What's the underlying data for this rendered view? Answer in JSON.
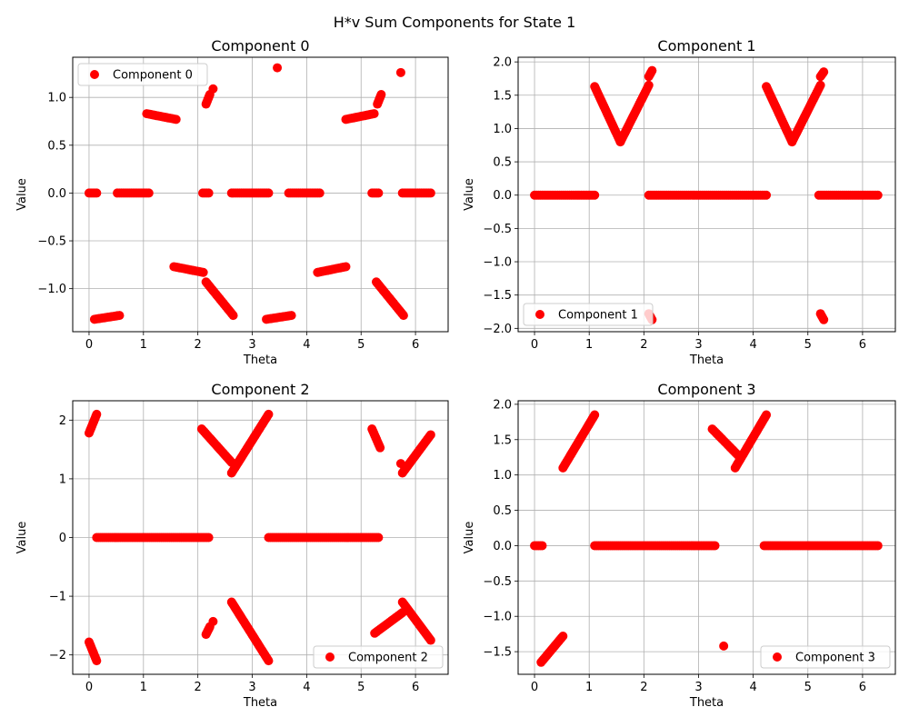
{
  "figure": {
    "suptitle": "H*v Sum Components for State 1",
    "marker_color": "#ff0000"
  },
  "chart_data": [
    {
      "type": "scatter",
      "title": "Component 0",
      "xlabel": "Theta",
      "ylabel": "Value",
      "xlim": [
        -0.3,
        6.6
      ],
      "ylim": [
        -1.45,
        1.42
      ],
      "xticks": [
        0,
        1,
        2,
        3,
        4,
        5,
        6
      ],
      "xtick_labels": [
        "0",
        "1",
        "2",
        "3",
        "4",
        "5",
        "6"
      ],
      "yticks": [
        -1.0,
        -0.5,
        0.0,
        0.5,
        1.0
      ],
      "ytick_labels": [
        "−1.0",
        "−0.5",
        "0.0",
        "0.5",
        "1.0"
      ],
      "grid": true,
      "legend": "upper-left",
      "series": [
        {
          "name": "Component 0",
          "color": "#ff0000",
          "segments": [
            {
              "x": [
                0.0,
                0.14
              ],
              "y": [
                0.0,
                0.0
              ]
            },
            {
              "x": [
                0.52,
                1.1
              ],
              "y": [
                0.0,
                0.0
              ]
            },
            {
              "x": [
                2.09,
                2.2
              ],
              "y": [
                0.0,
                0.0
              ]
            },
            {
              "x": [
                2.62,
                3.3
              ],
              "y": [
                0.0,
                0.0
              ]
            },
            {
              "x": [
                3.67,
                4.24
              ],
              "y": [
                0.0,
                0.0
              ]
            },
            {
              "x": [
                5.2,
                5.32
              ],
              "y": [
                0.0,
                0.0
              ]
            },
            {
              "x": [
                5.76,
                6.28
              ],
              "y": [
                0.0,
                0.0
              ]
            },
            {
              "x": [
                1.06,
                1.6
              ],
              "y": [
                0.83,
                0.77
              ]
            },
            {
              "x": [
                4.72,
                5.24
              ],
              "y": [
                0.77,
                0.83
              ]
            },
            {
              "x": [
                2.15,
                2.22
              ],
              "y": [
                0.93,
                1.03
              ]
            },
            {
              "x": [
                5.3,
                5.37
              ],
              "y": [
                0.93,
                1.03
              ]
            },
            {
              "x": [
                0.1,
                0.56
              ],
              "y": [
                -1.32,
                -1.28
              ]
            },
            {
              "x": [
                3.26,
                3.72
              ],
              "y": [
                -1.32,
                -1.28
              ]
            },
            {
              "x": [
                1.56,
                2.1
              ],
              "y": [
                -0.77,
                -0.83
              ]
            },
            {
              "x": [
                4.2,
                4.72
              ],
              "y": [
                -0.83,
                -0.77
              ]
            },
            {
              "x": [
                2.15,
                2.65
              ],
              "y": [
                -0.93,
                -1.28
              ]
            },
            {
              "x": [
                5.28,
                5.78
              ],
              "y": [
                -0.93,
                -1.28
              ]
            }
          ],
          "points": {
            "x": [
              2.28,
              3.46,
              5.73
            ],
            "y": [
              1.09,
              1.31,
              1.26
            ]
          }
        }
      ]
    },
    {
      "type": "scatter",
      "title": "Component 1",
      "xlabel": "Theta",
      "ylabel": "Value",
      "xlim": [
        -0.3,
        6.6
      ],
      "ylim": [
        -2.05,
        2.07
      ],
      "xticks": [
        0,
        1,
        2,
        3,
        4,
        5,
        6
      ],
      "xtick_labels": [
        "0",
        "1",
        "2",
        "3",
        "4",
        "5",
        "6"
      ],
      "yticks": [
        -2.0,
        -1.5,
        -1.0,
        -0.5,
        0.0,
        0.5,
        1.0,
        1.5,
        2.0
      ],
      "ytick_labels": [
        "−2.0",
        "−1.5",
        "−1.0",
        "−0.5",
        "0.0",
        "0.5",
        "1.0",
        "1.5",
        "2.0"
      ],
      "grid": true,
      "legend": "lower-left",
      "series": [
        {
          "name": "Component 1",
          "color": "#ff0000",
          "segments": [
            {
              "x": [
                0.0,
                1.1
              ],
              "y": [
                0.0,
                0.0
              ]
            },
            {
              "x": [
                2.09,
                4.24
              ],
              "y": [
                0.0,
                0.0
              ]
            },
            {
              "x": [
                5.2,
                6.28
              ],
              "y": [
                0.0,
                0.0
              ]
            },
            {
              "x": [
                1.1,
                1.57
              ],
              "y": [
                1.63,
                0.8
              ]
            },
            {
              "x": [
                1.57,
                2.09
              ],
              "y": [
                0.8,
                1.65
              ]
            },
            {
              "x": [
                2.09,
                2.15
              ],
              "y": [
                1.78,
                1.87
              ]
            },
            {
              "x": [
                4.24,
                4.71
              ],
              "y": [
                1.63,
                0.8
              ]
            },
            {
              "x": [
                4.71,
                5.23
              ],
              "y": [
                0.8,
                1.65
              ]
            },
            {
              "x": [
                5.23,
                5.29
              ],
              "y": [
                1.78,
                1.85
              ]
            },
            {
              "x": [
                2.09,
                2.15
              ],
              "y": [
                -1.78,
                -1.87
              ]
            },
            {
              "x": [
                5.23,
                5.29
              ],
              "y": [
                -1.78,
                -1.87
              ]
            }
          ],
          "points": {
            "x": [],
            "y": []
          }
        }
      ]
    },
    {
      "type": "scatter",
      "title": "Component 2",
      "xlabel": "Theta",
      "ylabel": "Value",
      "xlim": [
        -0.3,
        6.6
      ],
      "ylim": [
        -2.33,
        2.33
      ],
      "xticks": [
        0,
        1,
        2,
        3,
        4,
        5,
        6
      ],
      "xtick_labels": [
        "0",
        "1",
        "2",
        "3",
        "4",
        "5",
        "6"
      ],
      "yticks": [
        -2,
        -1,
        0,
        1,
        2
      ],
      "ytick_labels": [
        "−2",
        "−1",
        "0",
        "1",
        "2"
      ],
      "grid": true,
      "legend": "lower-right",
      "series": [
        {
          "name": "Component 2",
          "color": "#ff0000",
          "segments": [
            {
              "x": [
                0.14,
                2.2
              ],
              "y": [
                0.0,
                0.0
              ]
            },
            {
              "x": [
                3.3,
                5.32
              ],
              "y": [
                0.0,
                0.0
              ]
            },
            {
              "x": [
                0.0,
                0.14
              ],
              "y": [
                1.78,
                2.1
              ]
            },
            {
              "x": [
                0.0,
                0.14
              ],
              "y": [
                -1.78,
                -2.1
              ]
            },
            {
              "x": [
                2.07,
                2.62
              ],
              "y": [
                1.85,
                1.28
              ]
            },
            {
              "x": [
                2.62,
                3.3
              ],
              "y": [
                1.1,
                2.1
              ]
            },
            {
              "x": [
                5.2,
                5.35
              ],
              "y": [
                1.85,
                1.53
              ]
            },
            {
              "x": [
                5.76,
                6.28
              ],
              "y": [
                1.1,
                1.75
              ]
            },
            {
              "x": [
                2.15,
                2.22
              ],
              "y": [
                -1.65,
                -1.52
              ]
            },
            {
              "x": [
                2.62,
                3.3
              ],
              "y": [
                -1.1,
                -2.1
              ]
            },
            {
              "x": [
                5.25,
                5.76
              ],
              "y": [
                -1.63,
                -1.28
              ]
            },
            {
              "x": [
                5.76,
                6.28
              ],
              "y": [
                -1.1,
                -1.75
              ]
            }
          ],
          "points": {
            "x": [
              2.28,
              5.73
            ],
            "y": [
              -1.43,
              1.26
            ]
          }
        }
      ]
    },
    {
      "type": "scatter",
      "title": "Component 3",
      "xlabel": "Theta",
      "ylabel": "Value",
      "xlim": [
        -0.3,
        6.6
      ],
      "ylim": [
        -1.82,
        2.05
      ],
      "xticks": [
        0,
        1,
        2,
        3,
        4,
        5,
        6
      ],
      "xtick_labels": [
        "0",
        "1",
        "2",
        "3",
        "4",
        "5",
        "6"
      ],
      "yticks": [
        -1.5,
        -1.0,
        -0.5,
        0.0,
        0.5,
        1.0,
        1.5,
        2.0
      ],
      "ytick_labels": [
        "−1.5",
        "−1.0",
        "−0.5",
        "0.0",
        "0.5",
        "1.0",
        "1.5",
        "2.0"
      ],
      "grid": true,
      "legend": "lower-right",
      "series": [
        {
          "name": "Component 3",
          "color": "#ff0000",
          "segments": [
            {
              "x": [
                0.0,
                0.14
              ],
              "y": [
                0.0,
                0.0
              ]
            },
            {
              "x": [
                1.1,
                3.3
              ],
              "y": [
                0.0,
                0.0
              ]
            },
            {
              "x": [
                4.2,
                6.28
              ],
              "y": [
                0.0,
                0.0
              ]
            },
            {
              "x": [
                0.52,
                1.1
              ],
              "y": [
                1.1,
                1.85
              ]
            },
            {
              "x": [
                3.25,
                3.72
              ],
              "y": [
                1.65,
                1.28
              ]
            },
            {
              "x": [
                3.67,
                4.24
              ],
              "y": [
                1.1,
                1.85
              ]
            },
            {
              "x": [
                0.12,
                0.52
              ],
              "y": [
                -1.65,
                -1.28
              ]
            }
          ],
          "points": {
            "x": [
              3.46
            ],
            "y": [
              -1.42
            ]
          }
        }
      ]
    }
  ]
}
